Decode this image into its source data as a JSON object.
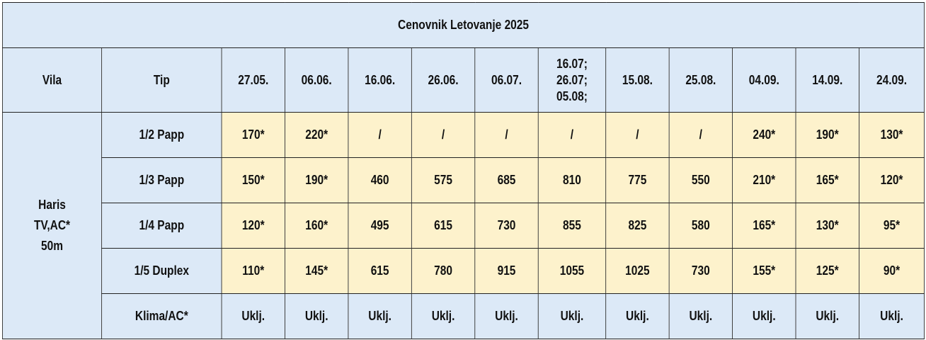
{
  "table": {
    "title": "Cenovnik Letovanje 2025",
    "header": {
      "vila": "Vila",
      "tip": "Tip",
      "dates": [
        [
          "27.05."
        ],
        [
          "06.06."
        ],
        [
          "16.06."
        ],
        [
          "26.06."
        ],
        [
          "06.07."
        ],
        [
          "16.07;",
          "26.07;",
          "05.08;"
        ],
        [
          "15.08."
        ],
        [
          "25.08."
        ],
        [
          "04.09."
        ],
        [
          "14.09."
        ],
        [
          "24.09."
        ]
      ]
    },
    "villa": {
      "lines": [
        "Haris",
        "TV,AC*",
        "50m"
      ]
    },
    "rows": [
      {
        "tip": "1/2 Papp",
        "values": [
          "170*",
          "220*",
          "/",
          "/",
          "/",
          "/",
          "/",
          "/",
          "240*",
          "190*",
          "130*"
        ]
      },
      {
        "tip": "1/3 Papp",
        "values": [
          "150*",
          "190*",
          "460",
          "575",
          "685",
          "810",
          "775",
          "550",
          "210*",
          "165*",
          "120*"
        ]
      },
      {
        "tip": "1/4 Papp",
        "values": [
          "120*",
          "160*",
          "495",
          "615",
          "730",
          "855",
          "825",
          "580",
          "165*",
          "130*",
          "95*"
        ]
      },
      {
        "tip": "1/5 Duplex",
        "values": [
          "110*",
          "145*",
          "615",
          "780",
          "915",
          "1055",
          "1025",
          "730",
          "155*",
          "125*",
          "90*"
        ]
      },
      {
        "tip": "Klima/AC*",
        "values": [
          "Uklj.",
          "Uklj.",
          "Uklj.",
          "Uklj.",
          "Uklj.",
          "Uklj.",
          "Uklj.",
          "Uklj.",
          "Uklj.",
          "Uklj.",
          "Uklj."
        ]
      }
    ],
    "colors": {
      "header_bg": "#dce9f7",
      "price_bg": "#fdf2cc",
      "border": "#222222"
    }
  }
}
